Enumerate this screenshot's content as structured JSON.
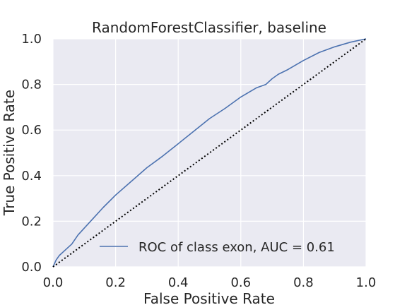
{
  "chart_data": {
    "type": "line",
    "title": "RandomForestClassifier, baseline",
    "xlabel": "False Positive Rate",
    "ylabel": "True Positive Rate",
    "xlim": [
      0.0,
      1.0
    ],
    "ylim": [
      0.0,
      1.0
    ],
    "xticks": [
      "0.0",
      "0.2",
      "0.4",
      "0.6",
      "0.8",
      "1.0"
    ],
    "yticks": [
      "0.0",
      "0.2",
      "0.4",
      "0.6",
      "0.8",
      "1.0"
    ],
    "grid": true,
    "legend_position": "lower-right",
    "series": [
      {
        "name": "ROC of class exon, AUC = 0.61",
        "color": "#4c72b0",
        "x": [
          0.0,
          0.01,
          0.02,
          0.04,
          0.06,
          0.08,
          0.1,
          0.13,
          0.16,
          0.2,
          0.25,
          0.3,
          0.35,
          0.4,
          0.45,
          0.5,
          0.55,
          0.6,
          0.65,
          0.68,
          0.7,
          0.72,
          0.75,
          0.8,
          0.85,
          0.9,
          0.95,
          1.0
        ],
        "y": [
          0.0,
          0.03,
          0.05,
          0.075,
          0.1,
          0.14,
          0.17,
          0.215,
          0.26,
          0.315,
          0.375,
          0.435,
          0.485,
          0.54,
          0.595,
          0.65,
          0.695,
          0.745,
          0.785,
          0.8,
          0.825,
          0.845,
          0.865,
          0.905,
          0.94,
          0.965,
          0.985,
          1.0
        ]
      },
      {
        "name": "",
        "color": "#000000",
        "style": "dotted",
        "x": [
          0.0,
          1.0
        ],
        "y": [
          0.0,
          1.0
        ]
      }
    ]
  }
}
